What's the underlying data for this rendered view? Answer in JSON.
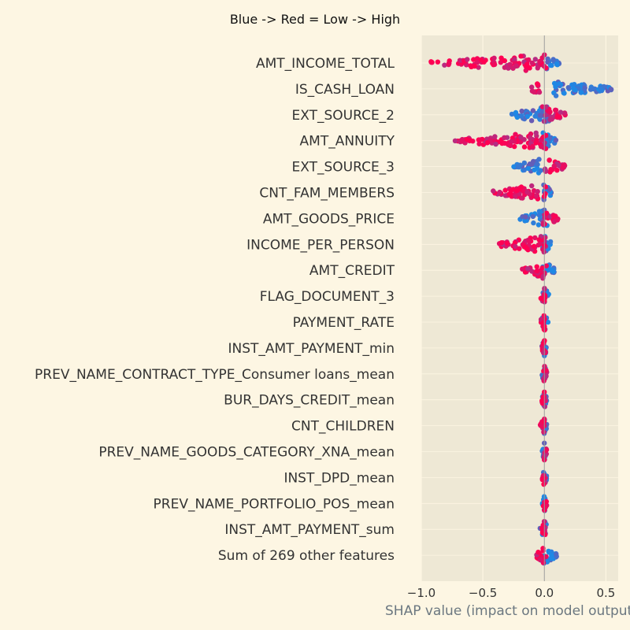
{
  "chart_data": {
    "type": "scatter",
    "title": "Blue -> Red = Low -> High",
    "xlabel": "SHAP value (impact on model output)",
    "xlim": [
      -1.0,
      0.6
    ],
    "xticks": [
      -1.0,
      -0.5,
      0.0,
      0.5
    ],
    "xtick_labels": [
      "−1.0",
      "−0.5",
      "0.0",
      "0.5"
    ],
    "grid": true,
    "colors": {
      "low": "#1e88e5",
      "high": "#ff0052",
      "background": "#eee8d5",
      "page": "#fdf6e3"
    },
    "features": [
      {
        "name": "AMT_INCOME_TOTAL",
        "low_range": [
          -0.01,
          0.12
        ],
        "high_range": [
          -0.93,
          0.02
        ]
      },
      {
        "name": "IS_CASH_LOAN",
        "low_range": [
          0.07,
          0.55
        ],
        "high_range": [
          -0.12,
          -0.04
        ]
      },
      {
        "name": "EXT_SOURCE_2",
        "low_range": [
          -0.27,
          0.04
        ],
        "high_range": [
          -0.02,
          0.18
        ]
      },
      {
        "name": "AMT_ANNUITY",
        "low_range": [
          -0.01,
          0.11
        ],
        "high_range": [
          -0.73,
          0.03
        ]
      },
      {
        "name": "EXT_SOURCE_3",
        "low_range": [
          -0.25,
          -0.02
        ],
        "high_range": [
          0.0,
          0.17
        ]
      },
      {
        "name": "CNT_FAM_MEMBERS",
        "low_range": [
          -0.02,
          0.06
        ],
        "high_range": [
          -0.42,
          0.01
        ]
      },
      {
        "name": "AMT_GOODS_PRICE",
        "low_range": [
          -0.2,
          0.05
        ],
        "high_range": [
          -0.02,
          0.11
        ]
      },
      {
        "name": "INCOME_PER_PERSON",
        "low_range": [
          -0.03,
          0.06
        ],
        "high_range": [
          -0.38,
          0.02
        ]
      },
      {
        "name": "AMT_CREDIT",
        "low_range": [
          -0.03,
          0.09
        ],
        "high_range": [
          -0.18,
          0.02
        ]
      },
      {
        "name": "FLAG_DOCUMENT_3",
        "low_range": [
          -0.02,
          0.04
        ],
        "high_range": [
          -0.03,
          0.01
        ]
      },
      {
        "name": "PAYMENT_RATE",
        "low_range": [
          -0.03,
          0.03
        ],
        "high_range": [
          -0.03,
          0.01
        ]
      },
      {
        "name": "INST_AMT_PAYMENT_min",
        "low_range": [
          -0.02,
          0.02
        ],
        "high_range": [
          -0.02,
          0.01
        ]
      },
      {
        "name": "PREV_NAME_CONTRACT_TYPE_Consumer loans_mean",
        "low_range": [
          -0.02,
          0.01
        ],
        "high_range": [
          -0.01,
          0.02
        ]
      },
      {
        "name": "BUR_DAYS_CREDIT_mean",
        "low_range": [
          -0.02,
          0.02
        ],
        "high_range": [
          -0.02,
          0.01
        ]
      },
      {
        "name": "CNT_CHILDREN",
        "low_range": [
          -0.01,
          0.02
        ],
        "high_range": [
          -0.04,
          0.0
        ]
      },
      {
        "name": "PREV_NAME_GOODS_CATEGORY_XNA_mean",
        "low_range": [
          -0.02,
          0.01
        ],
        "high_range": [
          -0.01,
          0.02
        ]
      },
      {
        "name": "INST_DPD_mean",
        "low_range": [
          -0.02,
          0.02
        ],
        "high_range": [
          -0.02,
          0.01
        ]
      },
      {
        "name": "PREV_NAME_PORTFOLIO_POS_mean",
        "low_range": [
          -0.02,
          0.01
        ],
        "high_range": [
          -0.01,
          0.02
        ]
      },
      {
        "name": "INST_AMT_PAYMENT_sum",
        "low_range": [
          -0.04,
          0.02
        ],
        "high_range": [
          -0.02,
          0.01
        ]
      },
      {
        "name": "Sum of 269 other features",
        "low_range": [
          -0.05,
          0.1
        ],
        "high_range": [
          -0.08,
          0.02
        ]
      }
    ]
  }
}
